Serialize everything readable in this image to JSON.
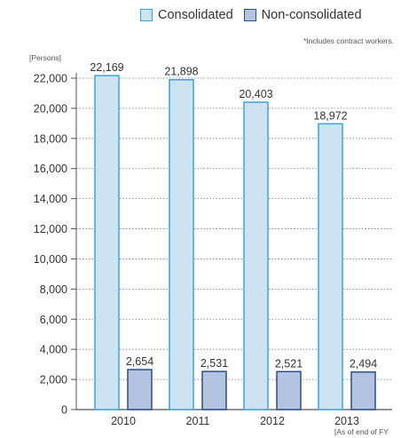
{
  "legend": {
    "consolidated": "Consolidated",
    "non_consolidated": "Non-consolidated"
  },
  "note": "*Includes contract workers.",
  "unit_label": "[Persons]",
  "as_of_label": "[As of end of FY",
  "colors": {
    "consolidated_fill": "#cde3f2",
    "consolidated_stroke": "#3aa6d6",
    "non_consolidated_fill": "#b3c3e0",
    "non_consolidated_stroke": "#2c4f86",
    "grid": "#7a7a7a",
    "axis": "#555555"
  },
  "chart_data": {
    "type": "bar",
    "categories": [
      "2010",
      "2011",
      "2012",
      "2013"
    ],
    "series": [
      {
        "name": "Consolidated",
        "values": [
          22169,
          21898,
          20403,
          18972
        ],
        "labels": [
          "22,169",
          "21,898",
          "20,403",
          "18,972"
        ]
      },
      {
        "name": "Non-consolidated",
        "values": [
          2654,
          2531,
          2521,
          2494
        ],
        "labels": [
          "2,654",
          "2,531",
          "2,521",
          "2,494"
        ]
      }
    ],
    "ylabel": "[Persons]",
    "ylim": [
      0,
      22000
    ],
    "yticks": [
      0,
      2000,
      4000,
      6000,
      8000,
      10000,
      12000,
      14000,
      16000,
      18000,
      20000,
      22000
    ],
    "ytick_labels": [
      "0",
      "2,000",
      "4,000",
      "6,000",
      "8,000",
      "10,000",
      "12,000",
      "14,000",
      "16,000",
      "18,000",
      "20,000",
      "22,000"
    ],
    "grid": "horizontal dotted",
    "legend_position": "top-right"
  }
}
